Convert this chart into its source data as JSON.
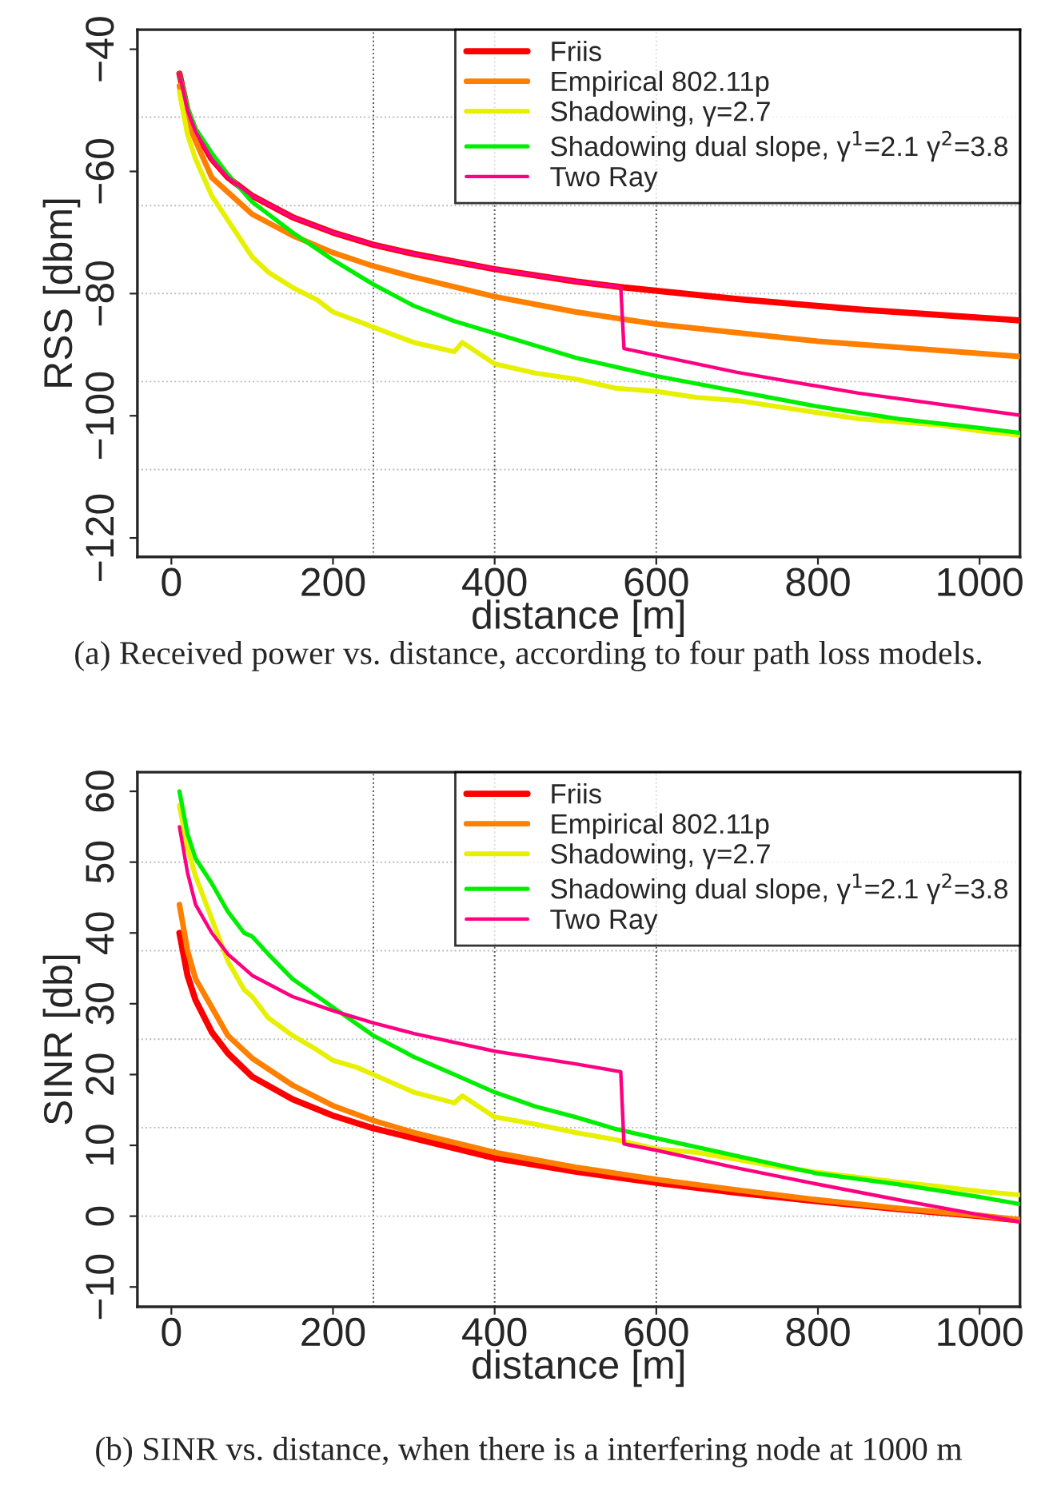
{
  "chart_data": [
    {
      "type": "line",
      "xlabel": "distance [m]",
      "ylabel": "RSS [dbm]",
      "xlim": [
        -42,
        1050
      ],
      "ylim": [
        -123.1,
        -36.8
      ],
      "xticks": [
        0,
        200,
        400,
        600,
        800,
        1000
      ],
      "yticks": [
        {
          "value": -40,
          "label": "−40"
        },
        {
          "value": -60,
          "label": "−60"
        },
        {
          "value": -80,
          "label": "−80"
        },
        {
          "value": -100,
          "label": "−100"
        },
        {
          "value": -120,
          "label": "−120"
        }
      ],
      "grid": false,
      "legend": "top right",
      "line_style": "solid",
      "series": [
        {
          "name": "Friis",
          "color": "#ff0000",
          "x": [
            10,
            20,
            30,
            50,
            70,
            100,
            150,
            200,
            250,
            300,
            400,
            500,
            560,
            700,
            850,
            1050
          ],
          "values": [
            -44,
            -50,
            -53.5,
            -58,
            -61,
            -64,
            -67.5,
            -70,
            -72,
            -73.5,
            -76,
            -78,
            -79,
            -80.9,
            -82.6,
            -84.4
          ]
        },
        {
          "name": "Empirical 802.11p",
          "color": "#ff8000",
          "x": [
            10,
            20,
            50,
            100,
            150,
            200,
            250,
            300,
            400,
            500,
            600,
            800,
            1050
          ],
          "values": [
            -46,
            -52,
            -61,
            -67,
            -70.5,
            -73.3,
            -75.5,
            -77.3,
            -80.5,
            -83,
            -85,
            -87.8,
            -90.3
          ]
        },
        {
          "name": "Shadowing, γ=2.7",
          "color": "#e6f000",
          "x": [
            10,
            20,
            30,
            50,
            70,
            90,
            100,
            120,
            150,
            180,
            200,
            230,
            250,
            280,
            300,
            350,
            360,
            400,
            450,
            500,
            550,
            600,
            650,
            700,
            750,
            800,
            850,
            900,
            950,
            1000,
            1050
          ],
          "values": [
            -47,
            -54,
            -58,
            -64,
            -68,
            -72,
            -74,
            -76.5,
            -79,
            -81,
            -83,
            -84.5,
            -85.5,
            -87,
            -88,
            -89.5,
            -88,
            -91.5,
            -93,
            -94,
            -95.5,
            -96,
            -97,
            -97.5,
            -98.5,
            -99.5,
            -100.5,
            -101,
            -101.5,
            -102.5,
            -103.2
          ]
        },
        {
          "name": "Shadowing dual slope, γ$^{1}$=2.1 γ$^{2}$=3.8",
          "color": "#00ee00",
          "x": [
            10,
            20,
            30,
            50,
            70,
            100,
            150,
            200,
            250,
            300,
            350,
            400,
            450,
            500,
            550,
            600,
            700,
            800,
            900,
            1000,
            1050
          ],
          "values": [
            -44,
            -49.5,
            -53,
            -57,
            -60.5,
            -65,
            -70,
            -74.5,
            -78.5,
            -82,
            -84.5,
            -86.5,
            -88.5,
            -90.5,
            -92,
            -93.5,
            -96,
            -98.5,
            -100.5,
            -102,
            -102.8
          ]
        },
        {
          "name": "Two Ray",
          "color": "#ff0080",
          "x": [
            10,
            20,
            30,
            50,
            70,
            100,
            150,
            200,
            250,
            300,
            400,
            500,
            556,
            560,
            700,
            850,
            1050
          ],
          "values": [
            -44,
            -50,
            -53.5,
            -58,
            -61,
            -64,
            -67.5,
            -70,
            -72,
            -73.5,
            -76,
            -78,
            -78.9,
            -89,
            -92.9,
            -96.3,
            -99.9
          ]
        }
      ],
      "ref_lines": [
        {
          "axis": "x",
          "value": 250,
          "color": "#555555",
          "line_style": "dotted"
        },
        {
          "axis": "x",
          "value": 400,
          "color": "#555555",
          "line_style": "dotted"
        },
        {
          "axis": "x",
          "value": 600,
          "color": "#555555",
          "line_style": "dotted"
        },
        {
          "axis": "y",
          "value": -51.1,
          "color": "#bbbbbb",
          "line_style": "dotted"
        },
        {
          "axis": "y",
          "value": -65.6,
          "color": "#bbbbbb",
          "line_style": "dotted"
        },
        {
          "axis": "y",
          "value": -80,
          "color": "#bbbbbb",
          "line_style": "dotted"
        },
        {
          "axis": "y",
          "value": -94.4,
          "color": "#bbbbbb",
          "line_style": "dotted"
        },
        {
          "axis": "y",
          "value": -108.8,
          "color": "#bbbbbb",
          "line_style": "dotted"
        }
      ],
      "annotations": [
        "(a) Received power vs. distance, according to four path loss models."
      ]
    },
    {
      "type": "line",
      "xlabel": "distance [m]",
      "ylabel": "SINR [db]",
      "xlim": [
        -42,
        1050
      ],
      "ylim": [
        -12.8,
        62.7
      ],
      "xticks": [
        0,
        200,
        400,
        600,
        800,
        1000
      ],
      "yticks": [
        {
          "value": -10,
          "label": "−10"
        },
        0,
        10,
        20,
        30,
        40,
        50,
        60
      ],
      "grid": false,
      "legend": "top right",
      "line_style": "solid",
      "series": [
        {
          "name": "Friis",
          "color": "#ff0000",
          "x": [
            10,
            20,
            30,
            50,
            70,
            100,
            150,
            200,
            250,
            300,
            400,
            500,
            600,
            700,
            800,
            900,
            1000,
            1050
          ],
          "values": [
            40,
            34,
            30.5,
            26,
            23,
            19.7,
            16.5,
            14.2,
            12.4,
            11,
            8.2,
            6.3,
            4.7,
            3.3,
            2.1,
            1,
            0,
            -0.6
          ]
        },
        {
          "name": "Empirical 802.11p",
          "color": "#ff8000",
          "x": [
            10,
            20,
            30,
            50,
            70,
            100,
            150,
            200,
            250,
            300,
            400,
            500,
            600,
            700,
            800,
            900,
            1000,
            1050
          ],
          "values": [
            44,
            37.5,
            33.5,
            29.5,
            25.5,
            22.3,
            18.5,
            15.6,
            13.5,
            11.8,
            9,
            6.9,
            5.2,
            3.7,
            2.3,
            1.1,
            0.1,
            -0.5
          ]
        },
        {
          "name": "Shadowing, γ=2.7",
          "color": "#e6f000",
          "x": [
            10,
            20,
            30,
            50,
            70,
            90,
            100,
            120,
            150,
            180,
            200,
            230,
            250,
            280,
            300,
            350,
            360,
            400,
            450,
            500,
            550,
            600,
            650,
            700,
            750,
            800,
            850,
            900,
            950,
            1000,
            1050
          ],
          "values": [
            58,
            52,
            48,
            42,
            36,
            32,
            31,
            28,
            25.5,
            23.5,
            22,
            21,
            20,
            18.5,
            17.5,
            16,
            17,
            14,
            13,
            11.8,
            10.8,
            9.5,
            9,
            8,
            7,
            6.2,
            5.5,
            4.8,
            4.2,
            3.5,
            3
          ]
        },
        {
          "name": "Shadowing dual slope, γ$^{1}$=2.1 γ$^{2}$=3.8",
          "color": "#00ee00",
          "x": [
            10,
            20,
            30,
            50,
            70,
            90,
            100,
            120,
            150,
            200,
            250,
            300,
            350,
            400,
            450,
            500,
            550,
            600,
            700,
            800,
            900,
            1000,
            1050
          ],
          "values": [
            60,
            54,
            50.5,
            47,
            43,
            40,
            39.5,
            37,
            33.5,
            29.5,
            25.5,
            22.5,
            20,
            17.5,
            15.5,
            14,
            12.3,
            11,
            8.5,
            6,
            4.5,
            2.7,
            1.7
          ]
        },
        {
          "name": "Two Ray",
          "color": "#ff0080",
          "x": [
            10,
            20,
            30,
            50,
            70,
            100,
            150,
            200,
            250,
            300,
            400,
            500,
            556,
            560,
            600,
            700,
            800,
            900,
            1000,
            1050
          ],
          "values": [
            55,
            48.5,
            44,
            40,
            37,
            34,
            31,
            29,
            27.3,
            25.8,
            23.3,
            21.5,
            20.4,
            10.2,
            9.3,
            6.8,
            4.5,
            2.3,
            0.2,
            -0.8
          ]
        }
      ],
      "ref_lines": [
        {
          "axis": "x",
          "value": 250,
          "color": "#555555",
          "line_style": "dotted"
        },
        {
          "axis": "x",
          "value": 400,
          "color": "#555555",
          "line_style": "dotted"
        },
        {
          "axis": "x",
          "value": 600,
          "color": "#555555",
          "line_style": "dotted"
        },
        {
          "axis": "y",
          "value": 50,
          "color": "#bbbbbb",
          "line_style": "dotted"
        },
        {
          "axis": "y",
          "value": 37.5,
          "color": "#bbbbbb",
          "line_style": "dotted"
        },
        {
          "axis": "y",
          "value": 25,
          "color": "#bbbbbb",
          "line_style": "dotted"
        },
        {
          "axis": "y",
          "value": 12.5,
          "color": "#bbbbbb",
          "line_style": "dotted"
        },
        {
          "axis": "y",
          "value": 0,
          "color": "#bbbbbb",
          "line_style": "dotted"
        }
      ],
      "annotations": [
        "(b) SINR vs. distance, when there is a interfering node at 1000 m"
      ]
    }
  ]
}
